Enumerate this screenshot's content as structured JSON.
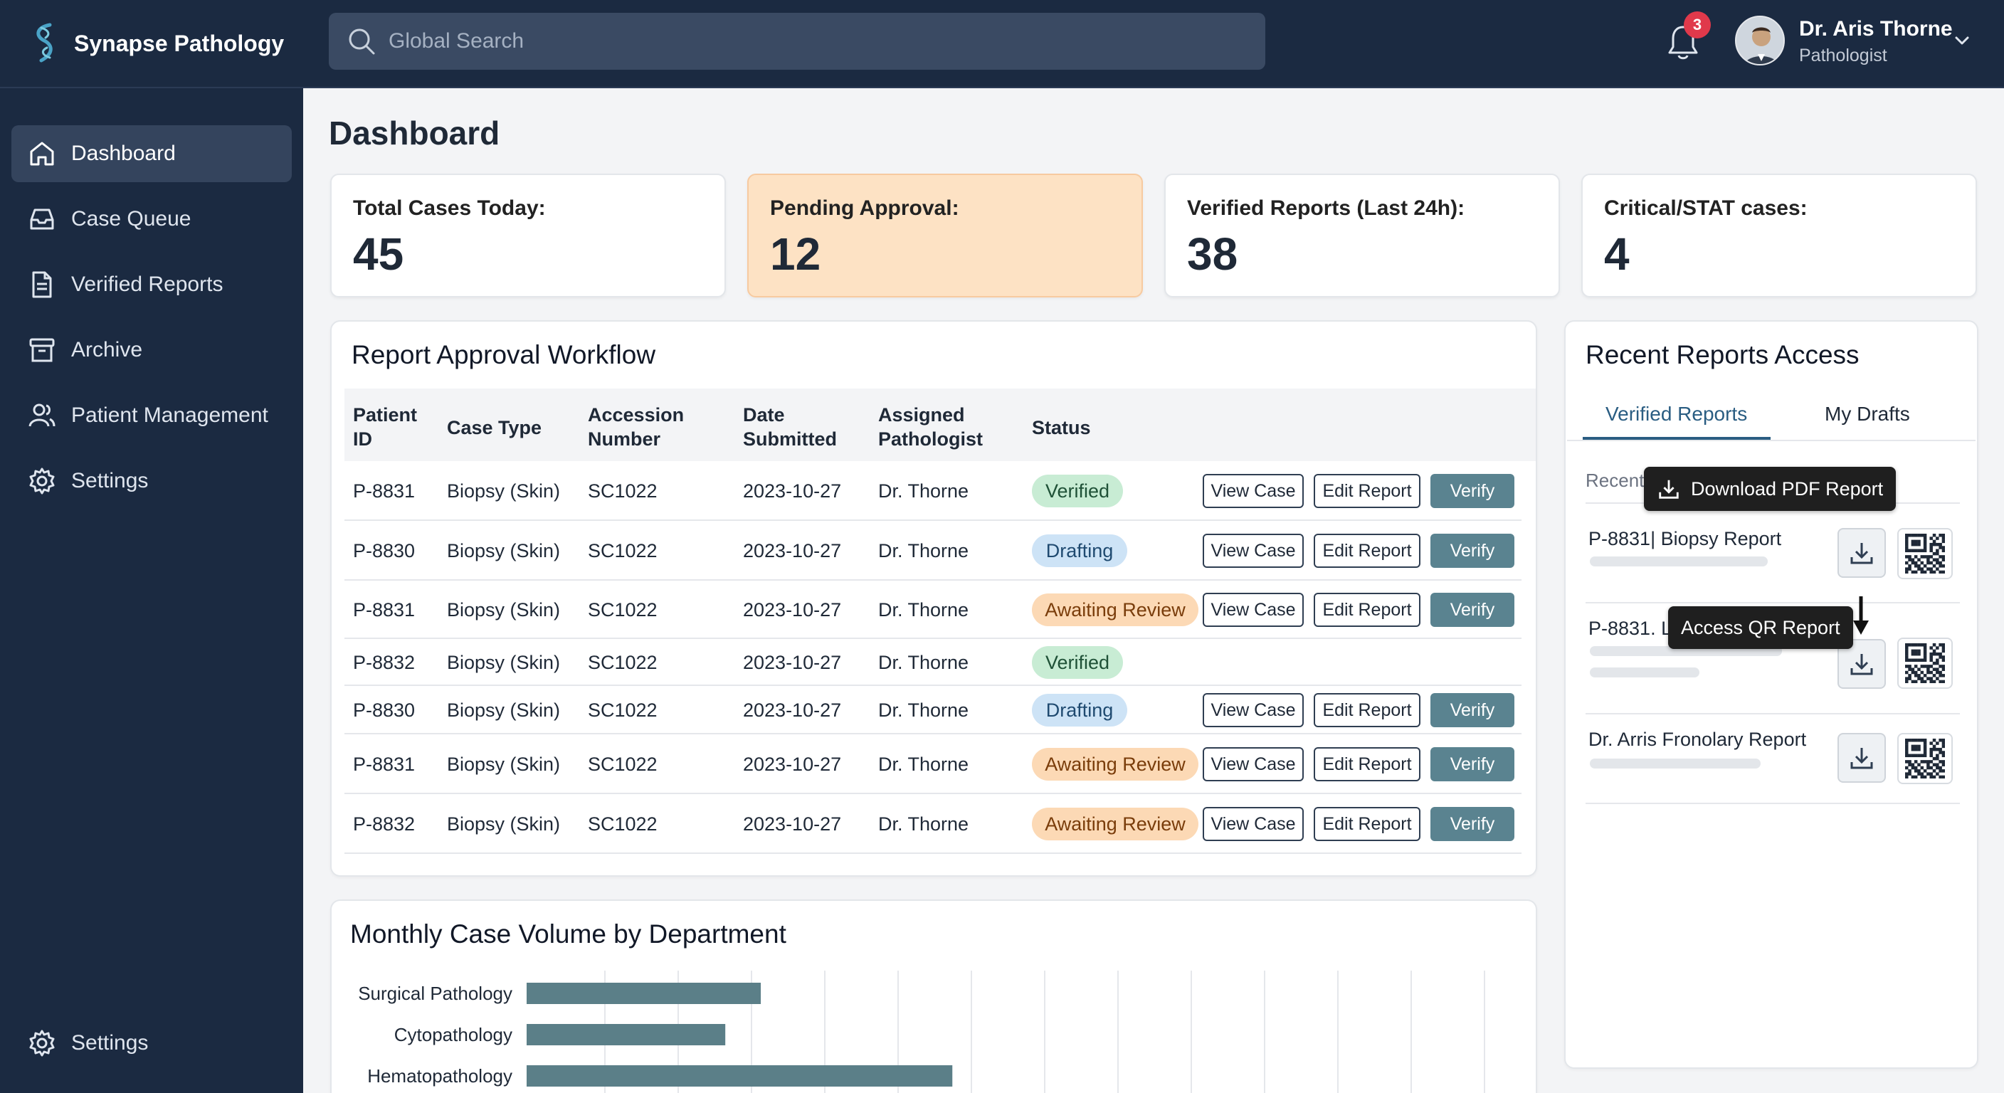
{
  "app": {
    "name": "Synapse Pathology"
  },
  "search": {
    "placeholder": "Global Search"
  },
  "notifications": {
    "count": "3"
  },
  "user": {
    "name": "Dr. Aris Thorne",
    "role": "Pathologist"
  },
  "sidebar": {
    "items": [
      {
        "label": "Dashboard",
        "icon": "home-icon",
        "active": true
      },
      {
        "label": "Case Queue",
        "icon": "inbox-icon"
      },
      {
        "label": "Verified Reports",
        "icon": "document-icon"
      },
      {
        "label": "Archive",
        "icon": "archive-icon"
      },
      {
        "label": "Patient Management",
        "icon": "users-icon"
      },
      {
        "label": "Settings",
        "icon": "gear-icon"
      }
    ],
    "footer_settings": "Settings"
  },
  "page": {
    "title": "Dashboard"
  },
  "stats": [
    {
      "label": "Total Cases Today:",
      "value": "45"
    },
    {
      "label": "Pending Approval:",
      "value": "12"
    },
    {
      "label": "Verified Reports (Last 24h):",
      "value": "38"
    },
    {
      "label": "Critical/STAT cases:",
      "value": "4"
    }
  ],
  "workflow": {
    "title": "Report Approval Workflow",
    "columns": {
      "patient_id_1": "Patient",
      "patient_id_2": "ID",
      "case_type": "Case Type",
      "accession_1": "Accession",
      "accession_2": "Number",
      "date_1": "Date",
      "date_2": "Submitted",
      "pathologist_1": "Assigned",
      "pathologist_2": "Pathologist",
      "status": "Status"
    },
    "actions": {
      "view": "View Case",
      "edit": "Edit Report",
      "verify": "Verify"
    },
    "rows": [
      {
        "patient_id": "P-8831",
        "case_type": "Biopsy (Skin)",
        "accession": "SC1022",
        "date": "2023-10-27",
        "pathologist": "Dr. Thorne",
        "status": "Verified",
        "status_kind": "verified",
        "has_actions": true
      },
      {
        "patient_id": "P-8830",
        "case_type": "Biopsy (Skin)",
        "accession": "SC1022",
        "date": "2023-10-27",
        "pathologist": "Dr. Thorne",
        "status": "Drafting",
        "status_kind": "drafting",
        "has_actions": true
      },
      {
        "patient_id": "P-8831",
        "case_type": "Biopsy (Skin)",
        "accession": "SC1022",
        "date": "2023-10-27",
        "pathologist": "Dr. Thorne",
        "status": "Awaiting Review",
        "status_kind": "awaiting",
        "has_actions": true
      },
      {
        "patient_id": "P-8832",
        "case_type": "Biopsy (Skin)",
        "accession": "SC1022",
        "date": "2023-10-27",
        "pathologist": "Dr. Thorne",
        "status": "Verified",
        "status_kind": "verified",
        "has_actions": false
      },
      {
        "patient_id": "P-8830",
        "case_type": "Biopsy (Skin)",
        "accession": "SC1022",
        "date": "2023-10-27",
        "pathologist": "Dr. Thorne",
        "status": "Drafting",
        "status_kind": "drafting",
        "has_actions": true
      },
      {
        "patient_id": "P-8831",
        "case_type": "Biopsy (Skin)",
        "accession": "SC1022",
        "date": "2023-10-27",
        "pathologist": "Dr. Thorne",
        "status": "Awaiting Review",
        "status_kind": "awaiting",
        "has_actions": true
      },
      {
        "patient_id": "P-8832",
        "case_type": "Biopsy (Skin)",
        "accession": "SC1022",
        "date": "2023-10-27",
        "pathologist": "Dr. Thorne",
        "status": "Awaiting Review",
        "status_kind": "awaiting",
        "has_actions": true
      }
    ]
  },
  "recent": {
    "title": "Recent Reports Access",
    "tabs": [
      "Verified Reports",
      "My Drafts"
    ],
    "section_label": "Recent",
    "items": [
      {
        "title": "P-8831| Biopsy Report"
      },
      {
        "title": "P-8831. L"
      },
      {
        "title": "Dr. Arris Fronolary Report"
      }
    ],
    "tooltips": {
      "download": "Download PDF Report",
      "qr": "Access QR Report"
    }
  },
  "chart_data": {
    "type": "bar",
    "orientation": "horizontal",
    "title": "Monthly Case Volume by Department",
    "categories": [
      "Surgical Pathology",
      "Cytopathology",
      "Hematopathology"
    ],
    "values": [
      33,
      28,
      60
    ],
    "xlim": [
      0,
      137
    ],
    "grid": true,
    "color": "#5b7f88"
  },
  "colors": {
    "sidebar": "#1b2a41",
    "accent": "#2a5d82",
    "verify": "#5a8390",
    "pending_card": "#fde2c4"
  }
}
